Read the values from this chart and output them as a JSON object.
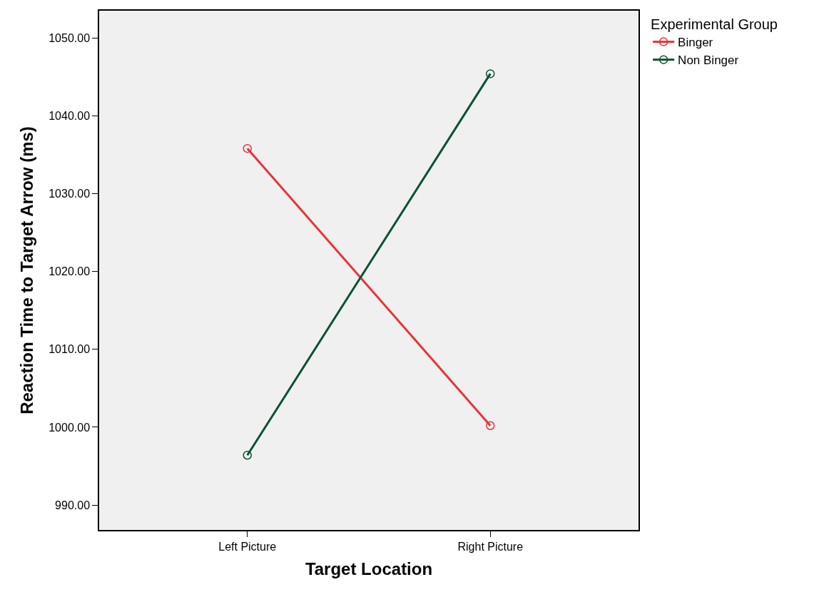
{
  "chart_data": {
    "type": "line",
    "xlabel": "Target Location",
    "ylabel": "Reaction Time to Target Arrow (ms)",
    "legend_title": "Experimental Group",
    "categories": [
      "Left Picture",
      "Right Picture"
    ],
    "series": [
      {
        "name": "Binger",
        "color": "#e8333a",
        "values": [
          1035.8,
          1000.2
        ]
      },
      {
        "name": "Non Binger",
        "color": "#0b5130",
        "values": [
          996.4,
          1045.4
        ]
      }
    ],
    "ylim": [
      986.8,
      1053.5
    ],
    "yticks": [
      {
        "value": 990,
        "label": "990.00"
      },
      {
        "value": 1000,
        "label": "1000.00"
      },
      {
        "value": 1010,
        "label": "1010.00"
      },
      {
        "value": 1020,
        "label": "1020.00"
      },
      {
        "value": 1030,
        "label": "1030.00"
      },
      {
        "value": 1040,
        "label": "1040.00"
      },
      {
        "value": 1050,
        "label": "1050.00"
      }
    ],
    "grid": false,
    "legend": "top right",
    "marker": "circle",
    "line_style": "solid"
  }
}
